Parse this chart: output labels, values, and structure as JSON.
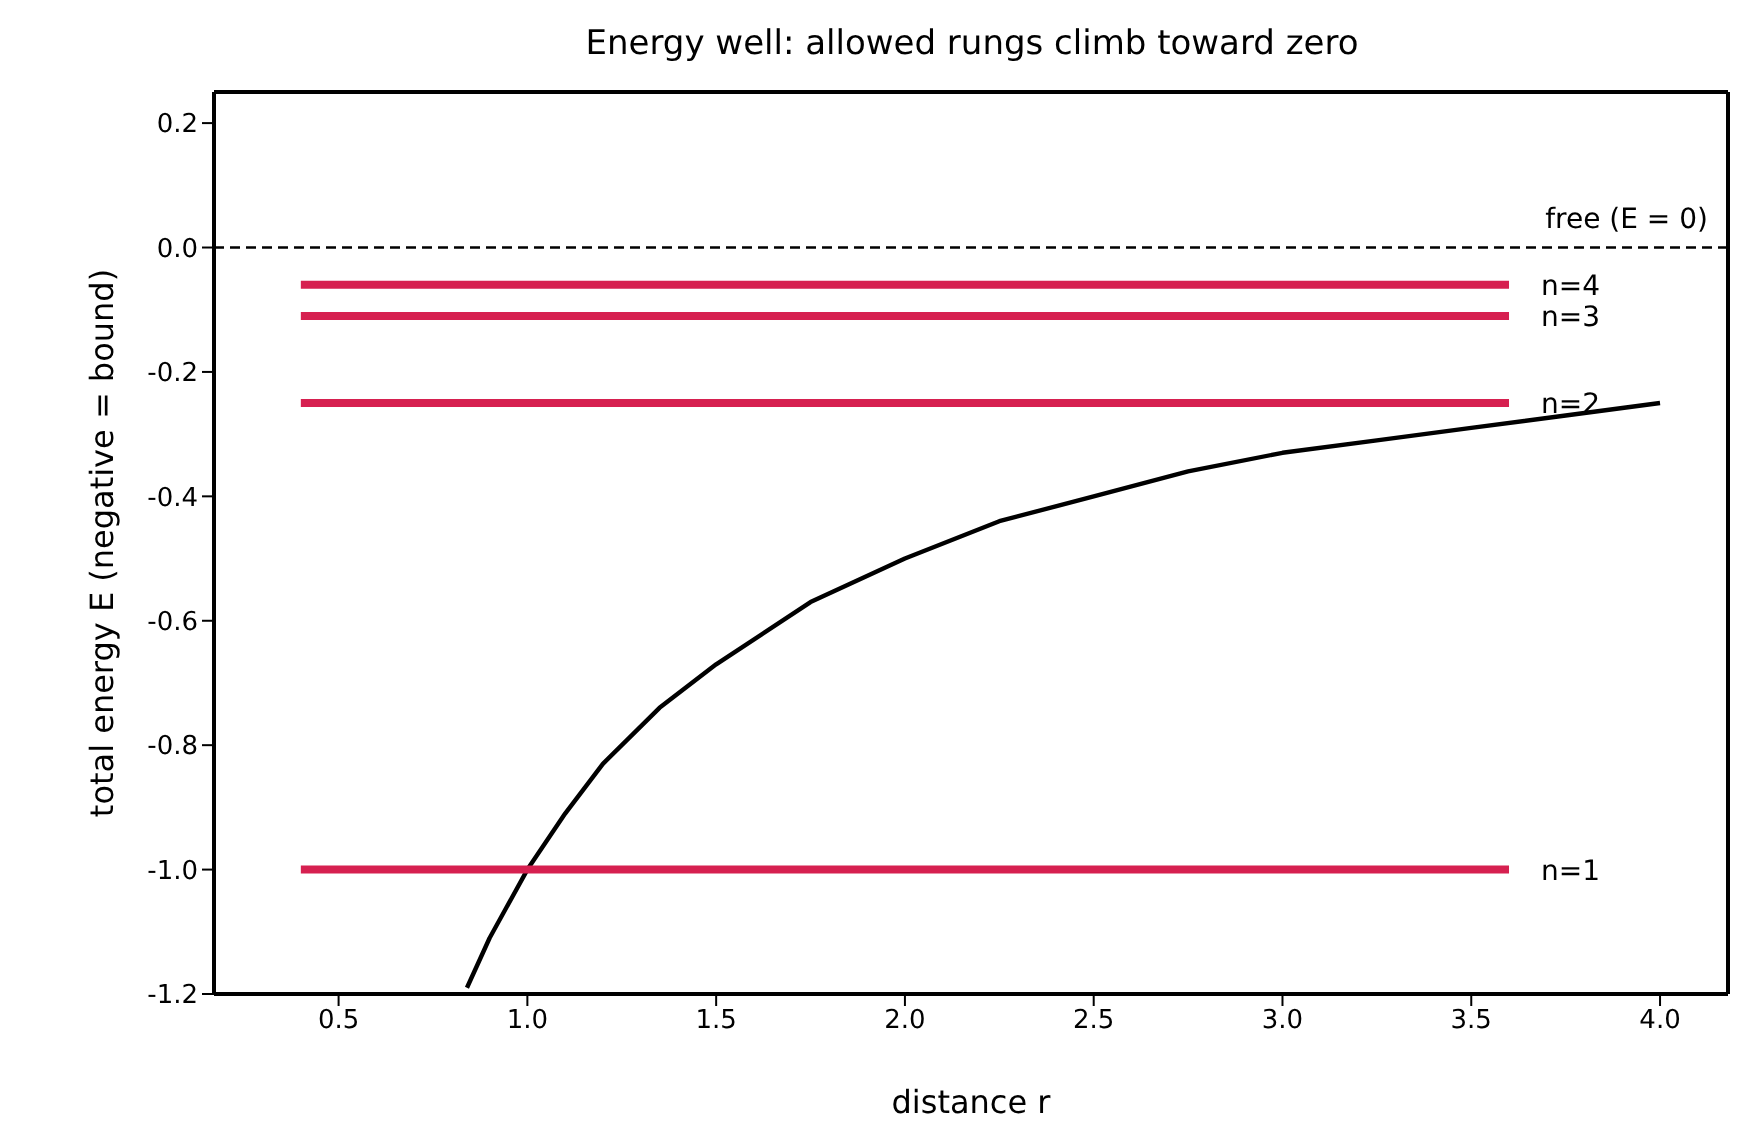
{
  "chart_data": {
    "type": "line",
    "title": "Energy well: allowed rungs climb toward zero",
    "xlabel": "distance  r",
    "ylabel": "total energy  E  (negative = bound)",
    "xlim": [
      0.17,
      4.18
    ],
    "ylim": [
      -1.2,
      0.25
    ],
    "xticks": [
      0.5,
      {
        "value": 1,
        "label": "1.0"
      },
      1.5,
      {
        "value": 2,
        "label": "2.0"
      },
      2.5,
      {
        "value": 3,
        "label": "3.0"
      },
      3.5,
      {
        "value": 4,
        "label": "4.0"
      }
    ],
    "yticks": [
      -1.2,
      {
        "value": -1,
        "label": "-1.0"
      },
      -0.8,
      -0.6,
      -0.4,
      -0.2,
      {
        "value": 0,
        "label": "0.0"
      },
      0.2
    ],
    "grid": false,
    "series": [
      {
        "color": "#000000",
        "x": [
          0.84,
          0.9,
          1,
          1.1,
          1.2,
          1.35,
          1.5,
          1.75,
          2,
          2.25,
          2.5,
          2.75,
          3,
          3.25,
          3.5,
          3.75,
          4
        ],
        "values": [
          -1.19,
          -1.11,
          -1.0,
          -0.91,
          -0.83,
          -0.74,
          -0.67,
          -0.57,
          -0.5,
          -0.44,
          -0.4,
          -0.36,
          -0.33,
          -0.31,
          -0.29,
          -0.27,
          -0.25
        ]
      },
      {
        "color": "#d62050",
        "x": [
          0.4,
          3.6
        ],
        "values": [
          -1.0,
          -1.0
        ]
      },
      {
        "color": "#d62050",
        "x": [
          0.4,
          3.6
        ],
        "values": [
          -0.25,
          -0.25
        ]
      },
      {
        "color": "#d62050",
        "x": [
          0.4,
          3.6
        ],
        "values": [
          -0.11,
          -0.11
        ]
      },
      {
        "color": "#d62050",
        "x": [
          0.4,
          3.6
        ],
        "values": [
          -0.06,
          -0.06
        ]
      }
    ],
    "ref_lines": [
      {
        "axis": "y",
        "value": 0,
        "label": "free (E = 0)",
        "color": "#000000",
        "line_style": "dashed"
      }
    ],
    "annotations": [
      "n=1",
      "n=2",
      "n=3",
      "n=4"
    ]
  }
}
